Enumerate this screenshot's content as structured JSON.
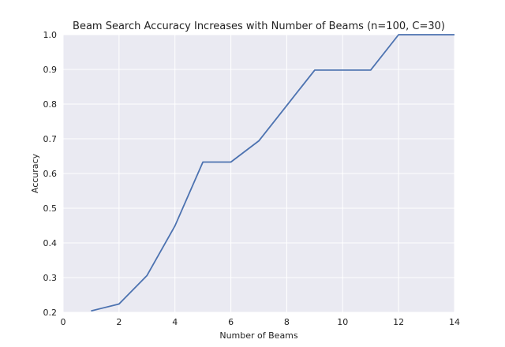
{
  "chart_data": {
    "type": "line",
    "title": "Beam Search Accuracy Increases with Number of Beams (n=100, C=30)",
    "xlabel": "Number of Beams",
    "ylabel": "Accuracy",
    "xlim": [
      0,
      14
    ],
    "ylim": [
      0.2,
      1.0
    ],
    "xticks": [
      0,
      2,
      4,
      6,
      8,
      10,
      12,
      14
    ],
    "yticks": [
      0.2,
      0.3,
      0.4,
      0.5,
      0.6,
      0.7,
      0.8,
      0.9,
      1.0
    ],
    "grid": true,
    "series": [
      {
        "x": [
          1,
          2,
          3,
          4,
          5,
          6,
          7,
          8,
          9,
          10,
          11,
          12,
          13,
          14
        ],
        "y": [
          0.204,
          0.224,
          0.306,
          0.449,
          0.633,
          0.633,
          0.694,
          0.796,
          0.898,
          0.898,
          0.898,
          1.0,
          1.0,
          1.0
        ],
        "color": "#4c72b0"
      }
    ],
    "background_color": "#eaeaf2",
    "grid_color": "#ffffff"
  }
}
